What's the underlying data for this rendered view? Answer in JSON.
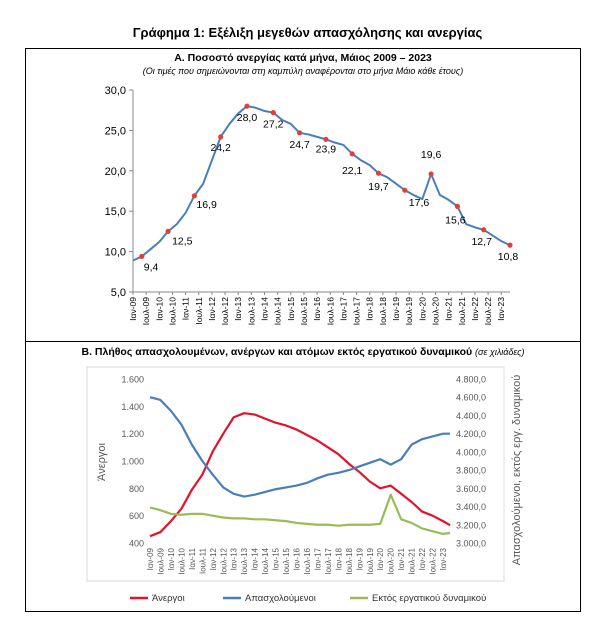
{
  "page_title": "Γράφημα 1: Εξέλιξη μεγεθών απασχόλησης και ανεργίας",
  "chart_data": [
    {
      "type": "line",
      "title": "Α. Ποσοστό ανεργίας κατά μήνα, Μάιος 2009 – 2023",
      "subtitle": "(Οι τιμές που σημειώνονται στη καμπύλη αναφέρονται στο μήνα Μάιο κάθε έτους)",
      "xlabel": "",
      "ylabel": "",
      "ylim": [
        5,
        30
      ],
      "yticks": [
        "5,0",
        "10,0",
        "15,0",
        "20,0",
        "25,0",
        "30,0"
      ],
      "xticks": [
        "Ιαν-09",
        "Ιουλ-09",
        "Ιαν-10",
        "Ιουλ-10",
        "Ιαν-11",
        "Ιουλ-11",
        "Ιαν-12",
        "Ιουλ-12",
        "Ιαν-13",
        "Ιουλ-13",
        "Ιαν-14",
        "Ιουλ-14",
        "Ιαν-15",
        "Ιουλ-15",
        "Ιαν-16",
        "Ιουλ-16",
        "Ιαν-17",
        "Ιουλ-17",
        "Ιαν-18",
        "Ιουλ-18",
        "Ιαν-19",
        "Ιουλ-19",
        "Ιαν-20",
        "Ιουλ-20",
        "Ιαν-21",
        "Ιουλ-21",
        "Ιαν-22",
        "Ιουλ-22",
        "Ιαν-23"
      ],
      "grid": false,
      "series_color": "#4a7ebb",
      "marker_color": "#e0403a",
      "x": [
        "2009-01",
        "2009-05",
        "2009-09",
        "2010-01",
        "2010-05",
        "2010-09",
        "2011-01",
        "2011-05",
        "2011-09",
        "2012-01",
        "2012-05",
        "2012-09",
        "2013-01",
        "2013-05",
        "2013-09",
        "2014-01",
        "2014-05",
        "2014-09",
        "2015-01",
        "2015-05",
        "2015-09",
        "2016-01",
        "2016-05",
        "2016-09",
        "2017-01",
        "2017-05",
        "2017-09",
        "2018-01",
        "2018-05",
        "2018-09",
        "2019-01",
        "2019-05",
        "2019-09",
        "2020-01",
        "2020-05",
        "2020-09",
        "2021-01",
        "2021-05",
        "2021-09",
        "2022-01",
        "2022-05",
        "2022-09",
        "2023-01",
        "2023-05"
      ],
      "values": [
        8.9,
        9.4,
        10.3,
        11.2,
        12.5,
        13.4,
        14.8,
        16.9,
        18.4,
        21.3,
        24.2,
        25.8,
        27.1,
        28.0,
        27.8,
        27.4,
        27.2,
        26.3,
        25.8,
        24.7,
        24.5,
        24.2,
        23.9,
        23.5,
        23.2,
        22.1,
        21.3,
        20.7,
        19.7,
        19.2,
        18.4,
        17.6,
        17.0,
        16.5,
        19.6,
        17.0,
        16.4,
        15.6,
        13.4,
        13.0,
        12.7,
        12.0,
        11.3,
        10.8
      ],
      "annotations": [
        {
          "x": "2009-05",
          "label": "9,4",
          "value": 9.4
        },
        {
          "x": "2010-05",
          "label": "12,5",
          "value": 12.5
        },
        {
          "x": "2011-05",
          "label": "16,9",
          "value": 16.9
        },
        {
          "x": "2012-05",
          "label": "24,2",
          "value": 24.2
        },
        {
          "x": "2013-05",
          "label": "28,0",
          "value": 28.0
        },
        {
          "x": "2014-05",
          "label": "27,2",
          "value": 27.2
        },
        {
          "x": "2015-05",
          "label": "24,7",
          "value": 24.7
        },
        {
          "x": "2016-05",
          "label": "23,9",
          "value": 23.9
        },
        {
          "x": "2017-05",
          "label": "22,1",
          "value": 22.1
        },
        {
          "x": "2018-05",
          "label": "19,7",
          "value": 19.7
        },
        {
          "x": "2019-05",
          "label": "17,6",
          "value": 17.6
        },
        {
          "x": "2020-05",
          "label": "19,6",
          "value": 19.6
        },
        {
          "x": "2021-05",
          "label": "15,6",
          "value": 15.6
        },
        {
          "x": "2022-05",
          "label": "12,7",
          "value": 12.7
        },
        {
          "x": "2023-05",
          "label": "10,8",
          "value": 10.8
        }
      ]
    },
    {
      "type": "line",
      "title": "Β. Πλήθος απασχολουμένων, ανέργων και ατόμων εκτός εργατικού δυναμικού",
      "title_note": "(σε χιλιάδες)",
      "xlabel": "",
      "ylabel": "Άνεργοι",
      "y2label": "Απασχολούμενοι, εκτός εργ. δυναμικού",
      "ylim": [
        400,
        1600
      ],
      "y2lim": [
        3000,
        4800
      ],
      "yticks": [
        "400",
        "600",
        "800",
        "1.000",
        "1.200",
        "1.400",
        "1.600"
      ],
      "y2ticks": [
        "3.000,0",
        "3.200,0",
        "3.400,0",
        "3.600,0",
        "3.800,0",
        "4.000,0",
        "4.200,0",
        "4.400,0",
        "4.600,0",
        "4.800,0"
      ],
      "xticks": [
        "Ιαν-09",
        "Ιουλ-09",
        "Ιαν-10",
        "Ιουλ-10",
        "Ιαν-11",
        "Ιουλ-11",
        "Ιαν-12",
        "Ιουλ-12",
        "Ιαν-13",
        "Ιουλ-13",
        "Ιαν-14",
        "Ιουλ-14",
        "Ιαν-15",
        "Ιουλ-15",
        "Ιαν-16",
        "Ιουλ-16",
        "Ιαν-17",
        "Ιουλ-17",
        "Ιαν-18",
        "Ιουλ-18",
        "Ιαν-19",
        "Ιουλ-19",
        "Ιαν-20",
        "Ιουλ-20",
        "Ιαν-21",
        "Ιουλ-21",
        "Ιαν-22",
        "Ιουλ-22",
        "Ιαν-23"
      ],
      "grid": false,
      "legend_position": "bottom",
      "x": [
        "2009-01",
        "2009-07",
        "2010-01",
        "2010-07",
        "2011-01",
        "2011-07",
        "2012-01",
        "2012-07",
        "2013-01",
        "2013-07",
        "2014-01",
        "2014-07",
        "2015-01",
        "2015-07",
        "2016-01",
        "2016-07",
        "2017-01",
        "2017-07",
        "2018-01",
        "2018-07",
        "2019-01",
        "2019-07",
        "2020-01",
        "2020-07",
        "2021-01",
        "2021-07",
        "2022-01",
        "2022-07",
        "2023-01",
        "2023-05"
      ],
      "series": [
        {
          "name": "Άνεργοι",
          "axis": "left",
          "color": "#e0142a",
          "values": [
            450,
            480,
            560,
            650,
            790,
            900,
            1070,
            1200,
            1320,
            1350,
            1340,
            1310,
            1280,
            1260,
            1230,
            1190,
            1150,
            1100,
            1050,
            980,
            920,
            850,
            800,
            820,
            760,
            700,
            630,
            600,
            560,
            530
          ]
        },
        {
          "name": "Απασχολούμενοι",
          "axis": "right",
          "color": "#4a7ebb",
          "values": [
            4600,
            4570,
            4450,
            4300,
            4080,
            3900,
            3750,
            3610,
            3540,
            3510,
            3530,
            3560,
            3590,
            3610,
            3630,
            3660,
            3710,
            3750,
            3770,
            3800,
            3840,
            3880,
            3920,
            3860,
            3920,
            4080,
            4140,
            4170,
            4200,
            4200
          ]
        },
        {
          "name": "Εκτός εργατικού δυναμικού",
          "axis": "right",
          "color": "#9bbb59",
          "values": [
            3390,
            3360,
            3320,
            3310,
            3320,
            3320,
            3300,
            3280,
            3270,
            3270,
            3260,
            3260,
            3250,
            3240,
            3220,
            3210,
            3200,
            3200,
            3190,
            3200,
            3200,
            3200,
            3210,
            3530,
            3260,
            3220,
            3160,
            3130,
            3100,
            3110
          ]
        }
      ]
    }
  ]
}
